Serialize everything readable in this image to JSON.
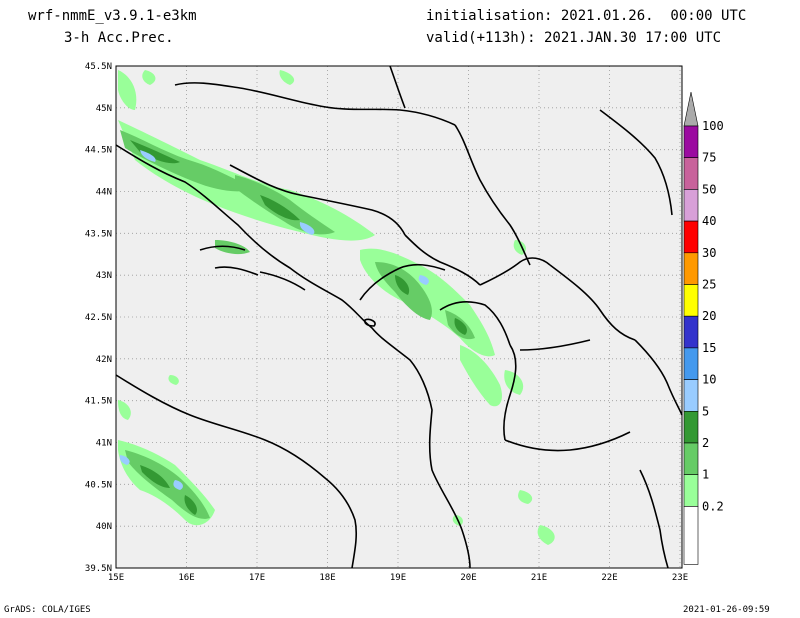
{
  "header": {
    "model": "wrf-nmmE_v3.9.1-e3km",
    "field": "3-h Acc.Prec.",
    "initialisation": "initialisation: 2021.01.26.  00:00 UTC",
    "valid": "valid(+113h): 2021.JAN.30 17:00 UTC"
  },
  "axes": {
    "lat_labels": [
      "45.5N",
      "45N",
      "44.5N",
      "44N",
      "43.5N",
      "43N",
      "42.5N",
      "42N",
      "41.5N",
      "41N",
      "40.5N",
      "40N",
      "39.5N"
    ],
    "lon_labels": [
      "15E",
      "16E",
      "17E",
      "18E",
      "19E",
      "20E",
      "21E",
      "22E",
      "23E"
    ]
  },
  "colorbar": {
    "levels": [
      "100",
      "75",
      "50",
      "40",
      "30",
      "25",
      "20",
      "15",
      "10",
      "5",
      "2",
      "1",
      "0.2"
    ],
    "colors": [
      "#9b0aa0",
      "#c8629b",
      "#d8a0d8",
      "#ff0000",
      "#ff9900",
      "#ffff00",
      "#3333cc",
      "#4499ee",
      "#99ccff",
      "#339933",
      "#66cc66",
      "#99ff99",
      "#ffffff"
    ],
    "top_color": "#aaaaaa"
  },
  "footer": {
    "left": "GrADS: COLA/IGES",
    "right": "2021-01-26-09:59"
  }
}
